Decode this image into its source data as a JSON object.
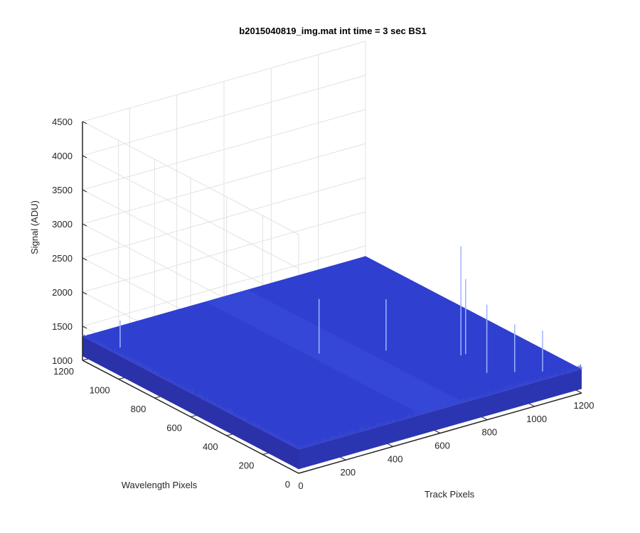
{
  "chart_data": {
    "type": "surface",
    "title": "b2015040819_img.mat int time = 3 sec   BS1",
    "xlabel": "Track Pixels",
    "ylabel": "Wavelength Pixels",
    "zlabel": "Signal (ADU)",
    "xlim": [
      0,
      1200
    ],
    "ylim": [
      0,
      1200
    ],
    "zlim": [
      1000,
      4500
    ],
    "xticks": [
      "0",
      "200",
      "400",
      "600",
      "800",
      "1000",
      "1200"
    ],
    "yticks": [
      "0",
      "200",
      "400",
      "600",
      "800",
      "1000",
      "1200"
    ],
    "zticks": [
      "1000",
      "1500",
      "2000",
      "2500",
      "3000",
      "3500",
      "4000",
      "4500"
    ],
    "grid": true,
    "colormap": "parula",
    "surface_color": "#2f3fd0",
    "baseline_level": 1350,
    "noise_amplitude": 60,
    "spikes": [
      {
        "track": 45,
        "wavelength": 1050,
        "signal": 1750
      },
      {
        "track": 940,
        "wavelength": 330,
        "signal": 2950
      },
      {
        "track": 960,
        "wavelength": 330,
        "signal": 2450
      },
      {
        "track": 560,
        "wavelength": 620,
        "signal": 2150
      },
      {
        "track": 760,
        "wavelength": 510,
        "signal": 2100
      },
      {
        "track": 920,
        "wavelength": 160,
        "signal": 2350
      },
      {
        "track": 1000,
        "wavelength": 110,
        "signal": 2050
      },
      {
        "track": 1080,
        "wavelength": 60,
        "signal": 1950
      }
    ]
  }
}
